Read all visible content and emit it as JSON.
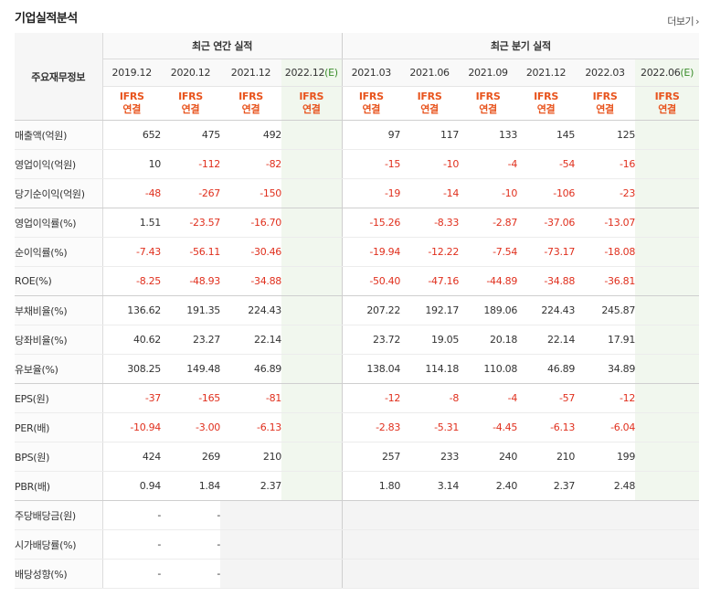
{
  "title": "기업실적분석",
  "more_label": "더보기",
  "more_arrow": "›",
  "row_header": "주요재무정보",
  "group_annual": "최근 연간 실적",
  "group_quarter": "최근 분기 실적",
  "annual_periods": [
    "2019.12",
    "2020.12",
    "2021.12",
    "2022.12"
  ],
  "annual_estimate_mark": "(E)",
  "quarter_periods": [
    "2021.03",
    "2021.06",
    "2021.09",
    "2021.12",
    "2022.03",
    "2022.06"
  ],
  "quarter_estimate_mark": "(E)",
  "ifrs_top": "IFRS",
  "ifrs_bottom": "연결",
  "colors": {
    "negative": "#e0301e",
    "ifrs": "#e8541e",
    "estimate_bg": "#f1f7ee",
    "estimate_mark": "#3b8e2c"
  },
  "rows": [
    {
      "label": "매출액(억원)",
      "annual": [
        "652",
        "475",
        "492",
        ""
      ],
      "quarter": [
        "97",
        "117",
        "133",
        "145",
        "125",
        ""
      ]
    },
    {
      "label": "영업이익(억원)",
      "annual": [
        "10",
        "-112",
        "-82",
        ""
      ],
      "quarter": [
        "-15",
        "-10",
        "-4",
        "-54",
        "-16",
        ""
      ]
    },
    {
      "label": "당기순이익(억원)",
      "annual": [
        "-48",
        "-267",
        "-150",
        ""
      ],
      "quarter": [
        "-19",
        "-14",
        "-10",
        "-106",
        "-23",
        ""
      ]
    },
    {
      "label": "영업이익률(%)",
      "annual": [
        "1.51",
        "-23.57",
        "-16.70",
        ""
      ],
      "quarter": [
        "-15.26",
        "-8.33",
        "-2.87",
        "-37.06",
        "-13.07",
        ""
      ]
    },
    {
      "label": "순이익률(%)",
      "annual": [
        "-7.43",
        "-56.11",
        "-30.46",
        ""
      ],
      "quarter": [
        "-19.94",
        "-12.22",
        "-7.54",
        "-73.17",
        "-18.08",
        ""
      ]
    },
    {
      "label": "ROE(%)",
      "annual": [
        "-8.25",
        "-48.93",
        "-34.88",
        ""
      ],
      "quarter": [
        "-50.40",
        "-47.16",
        "-44.89",
        "-34.88",
        "-36.81",
        ""
      ]
    },
    {
      "label": "부채비율(%)",
      "annual": [
        "136.62",
        "191.35",
        "224.43",
        ""
      ],
      "quarter": [
        "207.22",
        "192.17",
        "189.06",
        "224.43",
        "245.87",
        ""
      ]
    },
    {
      "label": "당좌비율(%)",
      "annual": [
        "40.62",
        "23.27",
        "22.14",
        ""
      ],
      "quarter": [
        "23.72",
        "19.05",
        "20.18",
        "22.14",
        "17.91",
        ""
      ]
    },
    {
      "label": "유보율(%)",
      "annual": [
        "308.25",
        "149.48",
        "46.89",
        ""
      ],
      "quarter": [
        "138.04",
        "114.18",
        "110.08",
        "46.89",
        "34.89",
        ""
      ]
    },
    {
      "label": "EPS(원)",
      "annual": [
        "-37",
        "-165",
        "-81",
        ""
      ],
      "quarter": [
        "-12",
        "-8",
        "-4",
        "-57",
        "-12",
        ""
      ]
    },
    {
      "label": "PER(배)",
      "annual": [
        "-10.94",
        "-3.00",
        "-6.13",
        ""
      ],
      "quarter": [
        "-2.83",
        "-5.31",
        "-4.45",
        "-6.13",
        "-6.04",
        ""
      ]
    },
    {
      "label": "BPS(원)",
      "annual": [
        "424",
        "269",
        "210",
        ""
      ],
      "quarter": [
        "257",
        "233",
        "240",
        "210",
        "199",
        ""
      ]
    },
    {
      "label": "PBR(배)",
      "annual": [
        "0.94",
        "1.84",
        "2.37",
        ""
      ],
      "quarter": [
        "1.80",
        "3.14",
        "2.40",
        "2.37",
        "2.48",
        ""
      ]
    },
    {
      "label": "주당배당금(원)",
      "annual": [
        "-",
        "-",
        null,
        null
      ],
      "quarter": [
        null,
        null,
        null,
        null,
        null,
        null
      ]
    },
    {
      "label": "시가배당률(%)",
      "annual": [
        "-",
        "-",
        null,
        null
      ],
      "quarter": [
        null,
        null,
        null,
        null,
        null,
        null
      ]
    },
    {
      "label": "배당성향(%)",
      "annual": [
        "-",
        "-",
        null,
        null
      ],
      "quarter": [
        null,
        null,
        null,
        null,
        null,
        null
      ]
    }
  ]
}
